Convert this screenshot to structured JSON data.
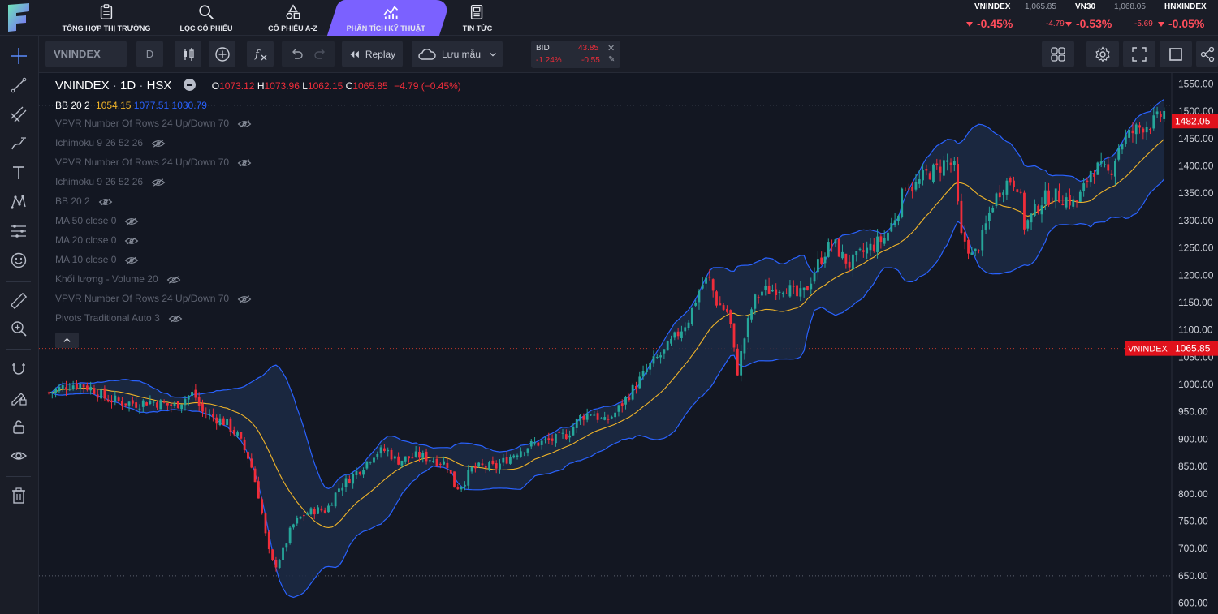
{
  "nav": {
    "tabs": [
      {
        "label": "TỔNG HỢP THỊ TRƯỜNG",
        "icon": "clipboard-icon"
      },
      {
        "label": "LỌC CỔ PHIẾU",
        "icon": "search-icon"
      },
      {
        "label": "CỔ PHIẾU A-Z",
        "icon": "shapes-icon"
      },
      {
        "label": "PHÂN TÍCH KỸ THUẬT",
        "icon": "analytics-chart-icon",
        "active": true
      },
      {
        "label": "TIN TỨC",
        "icon": "news-icon"
      }
    ],
    "accent": "#7b61ff"
  },
  "indices": [
    {
      "name": "VNINDEX",
      "value": "1,065.85",
      "pct": "-0.45%",
      "change": "-4.79"
    },
    {
      "name": "VN30",
      "value": "1,068.05",
      "pct": "-0.53%",
      "change": "-5.69"
    },
    {
      "name": "HNXINDEX",
      "value": "",
      "pct": "-0.05%",
      "change": ""
    }
  ],
  "toolbar": {
    "symbol": "VNINDEX",
    "interval": "D",
    "replay": "Replay",
    "save_template": "Lưu mẫu",
    "bid": {
      "label": "BID",
      "price": "43.85",
      "pct": "-1.24%",
      "change": "-0.55"
    }
  },
  "chart_header": {
    "symbol": "VNINDEX",
    "interval": "1D",
    "exchange": "HSX",
    "o_label": "O",
    "o": "1073.12",
    "h_label": "H",
    "h": "1073.96",
    "l_label": "L",
    "l": "1062.15",
    "c_label": "C",
    "c": "1065.85",
    "change": "−4.79 (−0.45%)",
    "bb_label": "BB 20 2",
    "bb_mid": "1054.15",
    "bb_upper": "1077.51",
    "bb_lower": "1030.79"
  },
  "legend_items": [
    "VPVR Number Of Rows 24 Up/Down 70",
    "Ichimoku 9 26 52 26",
    "VPVR Number Of Rows 24 Up/Down 70",
    "Ichimoku 9 26 52 26",
    "BB 20 2",
    "MA 50 close 0",
    "MA 20 close 0",
    "MA 10 close 0",
    "Khối lượng - Volume 20",
    "VPVR Number Of Rows 24 Up/Down 70",
    "Pivots Traditional Auto 3"
  ],
  "price_labels": {
    "last_price": "1482.05",
    "symbol_tag": "VNINDEX",
    "symbol_price": "1065.85"
  },
  "colors": {
    "up": "#26a69a",
    "down": "#ef2d3a",
    "bb_band": "#2962ff",
    "bb_basis": "#f0b429",
    "bb_fill": "#1c2a44",
    "price_tag": "#e0121c"
  },
  "chart_data": {
    "type": "candlestick",
    "ylim": [
      580,
      1570
    ],
    "yticks": [
      "1550.00",
      "1500.00",
      "1450.00",
      "1400.00",
      "1350.00",
      "1300.00",
      "1250.00",
      "1200.00",
      "1150.00",
      "1100.00",
      "1050.00",
      "1000.00",
      "950.00",
      "900.00",
      "850.00",
      "800.00",
      "750.00",
      "700.00",
      "650.00",
      "600.00"
    ],
    "reference_lines": [
      1511,
      1065.85,
      650
    ],
    "close_path": [
      [
        0,
        985
      ],
      [
        10,
        990
      ],
      [
        25,
        1000
      ],
      [
        40,
        1000
      ],
      [
        55,
        992
      ],
      [
        70,
        975
      ],
      [
        90,
        968
      ],
      [
        110,
        965
      ],
      [
        125,
        970
      ],
      [
        140,
        965
      ],
      [
        155,
        960
      ],
      [
        170,
        975
      ],
      [
        180,
        985
      ],
      [
        190,
        950
      ],
      [
        205,
        940
      ],
      [
        220,
        930
      ],
      [
        235,
        905
      ],
      [
        250,
        860
      ],
      [
        262,
        790
      ],
      [
        272,
        700
      ],
      [
        280,
        665
      ],
      [
        290,
        690
      ],
      [
        302,
        740
      ],
      [
        315,
        760
      ],
      [
        330,
        770
      ],
      [
        345,
        770
      ],
      [
        360,
        810
      ],
      [
        375,
        830
      ],
      [
        390,
        850
      ],
      [
        405,
        875
      ],
      [
        420,
        880
      ],
      [
        432,
        860
      ],
      [
        445,
        865
      ],
      [
        460,
        870
      ],
      [
        472,
        865
      ],
      [
        485,
        860
      ],
      [
        495,
        855
      ],
      [
        505,
        810
      ],
      [
        515,
        820
      ],
      [
        525,
        845
      ],
      [
        540,
        850
      ],
      [
        555,
        848
      ],
      [
        570,
        865
      ],
      [
        585,
        880
      ],
      [
        600,
        890
      ],
      [
        615,
        895
      ],
      [
        630,
        900
      ],
      [
        645,
        910
      ],
      [
        660,
        940
      ],
      [
        675,
        950
      ],
      [
        690,
        930
      ],
      [
        705,
        950
      ],
      [
        720,
        980
      ],
      [
        735,
        1010
      ],
      [
        750,
        1040
      ],
      [
        765,
        1060
      ],
      [
        780,
        1090
      ],
      [
        795,
        1120
      ],
      [
        810,
        1180
      ],
      [
        820,
        1195
      ],
      [
        830,
        1150
      ],
      [
        845,
        1130
      ],
      [
        855,
        1020
      ],
      [
        865,
        1090
      ],
      [
        875,
        1150
      ],
      [
        885,
        1170
      ],
      [
        900,
        1175
      ],
      [
        915,
        1180
      ],
      [
        930,
        1160
      ],
      [
        940,
        1170
      ],
      [
        955,
        1220
      ],
      [
        965,
        1245
      ],
      [
        975,
        1260
      ],
      [
        985,
        1235
      ],
      [
        995,
        1220
      ],
      [
        1010,
        1240
      ],
      [
        1025,
        1255
      ],
      [
        1040,
        1270
      ],
      [
        1055,
        1320
      ],
      [
        1065,
        1370
      ],
      [
        1075,
        1360
      ],
      [
        1090,
        1385
      ],
      [
        1105,
        1395
      ],
      [
        1115,
        1410
      ],
      [
        1125,
        1395
      ],
      [
        1133,
        1270
      ],
      [
        1140,
        1260
      ],
      [
        1148,
        1230
      ],
      [
        1160,
        1270
      ],
      [
        1172,
        1330
      ],
      [
        1185,
        1365
      ],
      [
        1195,
        1375
      ],
      [
        1205,
        1365
      ],
      [
        1212,
        1290
      ],
      [
        1220,
        1305
      ],
      [
        1235,
        1340
      ],
      [
        1250,
        1345
      ],
      [
        1265,
        1340
      ],
      [
        1275,
        1330
      ],
      [
        1285,
        1355
      ],
      [
        1295,
        1395
      ],
      [
        1305,
        1395
      ],
      [
        1318,
        1385
      ],
      [
        1330,
        1440
      ],
      [
        1345,
        1460
      ],
      [
        1360,
        1475
      ],
      [
        1375,
        1480
      ],
      [
        1385,
        1500
      ],
      [
        1390,
        1482
      ]
    ]
  }
}
